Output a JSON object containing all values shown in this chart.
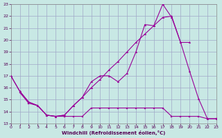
{
  "bg_color": "#c8e8e4",
  "grid_color": "#a0a8c8",
  "line_color": "#990099",
  "xlabel": "Windchill (Refroidissement éolien,°C)",
  "xlim": [
    0,
    23
  ],
  "ylim": [
    13,
    23
  ],
  "xticks": [
    0,
    1,
    2,
    3,
    4,
    5,
    6,
    7,
    8,
    9,
    10,
    11,
    12,
    13,
    14,
    15,
    16,
    17,
    18,
    19,
    20,
    21,
    22,
    23
  ],
  "yticks": [
    13,
    14,
    15,
    16,
    17,
    18,
    19,
    20,
    21,
    22,
    23
  ],
  "curve_upper_x": [
    0,
    1,
    2,
    3,
    4,
    5,
    6,
    7,
    8,
    9,
    10,
    11,
    12,
    13,
    14,
    15,
    16,
    17,
    18,
    19,
    20
  ],
  "curve_upper_y": [
    17.0,
    15.7,
    14.8,
    14.5,
    13.7,
    13.6,
    13.7,
    14.5,
    15.2,
    16.5,
    17.0,
    17.0,
    16.5,
    17.2,
    19.0,
    21.3,
    21.2,
    23.0,
    21.9,
    19.8,
    19.8
  ],
  "curve_mid_x": [
    0,
    1,
    2,
    3,
    4,
    5,
    6,
    7,
    8,
    9,
    10,
    11,
    12,
    13,
    14,
    15,
    16,
    17,
    18,
    19,
    20,
    21,
    22,
    23
  ],
  "curve_mid_y": [
    17.0,
    15.7,
    14.8,
    14.5,
    13.7,
    13.6,
    13.7,
    14.5,
    15.2,
    16.0,
    16.7,
    17.5,
    18.2,
    19.0,
    19.8,
    20.5,
    21.2,
    21.9,
    22.0,
    19.8,
    17.4,
    15.1,
    13.4,
    13.4
  ],
  "curve_lower_x": [
    1,
    2,
    3,
    4,
    5,
    6,
    7,
    8,
    9,
    10,
    11,
    12,
    13,
    14,
    15,
    16,
    17,
    18,
    19,
    20,
    21,
    22,
    23
  ],
  "curve_lower_y": [
    15.6,
    14.7,
    14.5,
    13.7,
    13.6,
    13.6,
    13.6,
    13.6,
    14.3,
    14.3,
    14.3,
    14.3,
    14.3,
    14.3,
    14.3,
    14.3,
    14.3,
    13.6,
    13.6,
    13.6,
    13.6,
    13.4,
    13.4
  ]
}
